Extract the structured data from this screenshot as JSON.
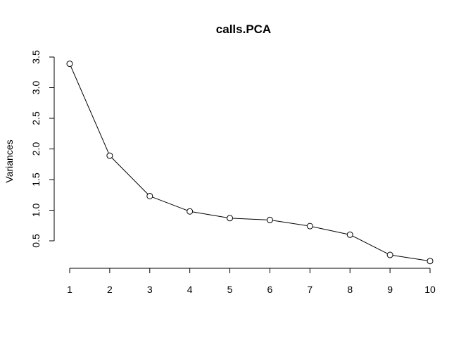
{
  "chart_data": {
    "type": "line",
    "title": "calls.PCA",
    "xlabel": "",
    "ylabel": "Variances",
    "x": [
      1,
      2,
      3,
      4,
      5,
      6,
      7,
      8,
      9,
      10
    ],
    "series": [
      {
        "values": [
          3.39,
          1.89,
          1.23,
          0.98,
          0.87,
          0.84,
          0.74,
          0.6,
          0.27,
          0.17
        ]
      }
    ],
    "xticks": [
      "1",
      "2",
      "3",
      "4",
      "5",
      "6",
      "7",
      "8",
      "9",
      "10"
    ],
    "yticks": [
      "0.5",
      "1.0",
      "1.5",
      "2.0",
      "2.5",
      "3.0",
      "3.5"
    ],
    "ylim": [
      0.5,
      3.5
    ],
    "xlim": [
      1,
      10
    ],
    "grid": false,
    "marker": "open-circle"
  }
}
